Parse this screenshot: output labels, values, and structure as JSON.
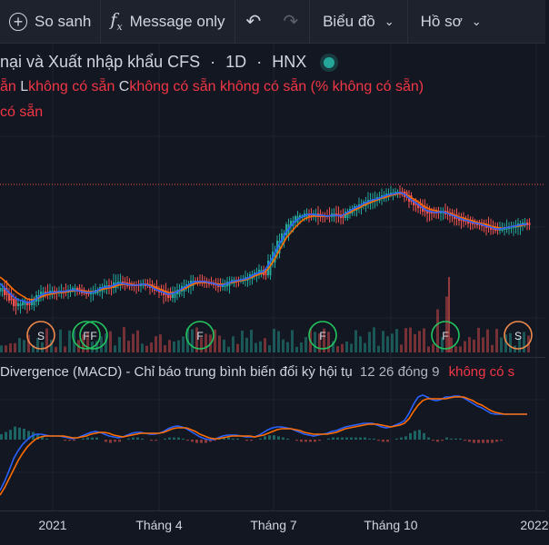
{
  "toolbar": {
    "compare_label": "So sanh",
    "indicator_label": "Message only",
    "chart_label": "Biểu đồ",
    "profile_label": "Hồ sơ"
  },
  "legend": {
    "title": "nại và Xuất nhập khẩu CFS",
    "interval": "1D",
    "exchange": "HNX",
    "row2_open_value": "ẵn",
    "row2_low_label": "L",
    "row2_low_value": "không có sẵn",
    "row2_close_label": "C",
    "row2_close_value": "không có sẵn",
    "row2_change": "không có sẵn (% không có sẵn)",
    "row3": "có sẵn"
  },
  "macd": {
    "title": "Divergence (MACD) - Chỉ báo trung bình biến đổi kỳ hội tụ",
    "params": "12 26 đóng 9",
    "value": "không có s"
  },
  "colors": {
    "background": "#131722",
    "up": "#26a69a",
    "down": "#ef5350",
    "macd_line": "#2962ff",
    "signal_line": "#ff6d00"
  },
  "chart_data": {
    "type": "line",
    "x_ticks": [
      "2021",
      "Tháng 4",
      "Tháng 7",
      "Tháng 10",
      "2022"
    ],
    "price": {
      "x": [
        0,
        5,
        10,
        15,
        20,
        25,
        30,
        35,
        40,
        45,
        50,
        55,
        60,
        65,
        70,
        75,
        80,
        85,
        90,
        95,
        100,
        105,
        110,
        115,
        120,
        125,
        130,
        135,
        140,
        145,
        150,
        155,
        160,
        165,
        170,
        175,
        180,
        185,
        190,
        195,
        200,
        205,
        210,
        215,
        220,
        225,
        230,
        235,
        240,
        245,
        250,
        255,
        260,
        265,
        270,
        275,
        280,
        285,
        290,
        295,
        300,
        305,
        310,
        315,
        320,
        325,
        330,
        335,
        340,
        345,
        350,
        355,
        360,
        365,
        370,
        375,
        380,
        385,
        390,
        395,
        400,
        405,
        410,
        415,
        420,
        425,
        430,
        435,
        440,
        445,
        450,
        455,
        460,
        465,
        470,
        475,
        480,
        485,
        490,
        495,
        500,
        505,
        510,
        515,
        520,
        525,
        530,
        535,
        540,
        545,
        550,
        555,
        560,
        565,
        570,
        575,
        580
      ],
      "close": [
        318,
        324,
        330,
        336,
        335,
        333,
        335,
        331,
        326,
        322,
        322,
        321,
        322,
        321,
        321,
        320,
        318,
        320,
        322,
        323,
        322,
        320,
        317,
        315,
        316,
        312,
        311,
        312,
        314,
        314,
        314,
        313,
        314,
        316,
        319,
        321,
        324,
        327,
        323,
        320,
        316,
        314,
        310,
        310,
        310,
        311,
        312,
        313,
        315,
        314,
        311,
        309,
        309,
        308,
        306,
        303,
        301,
        298,
        302,
        288,
        278,
        266,
        258,
        248,
        244,
        239,
        238,
        236,
        237,
        236,
        238,
        238,
        238,
        236,
        237,
        239,
        234,
        231,
        228,
        226,
        223,
        221,
        220,
        218,
        216,
        214,
        213,
        212,
        212,
        216,
        221,
        225,
        228,
        232,
        234,
        234,
        234,
        233,
        235,
        237,
        240,
        242,
        243,
        245,
        246,
        247,
        248,
        250,
        252,
        253,
        252,
        251,
        250,
        249,
        247,
        246,
        247
      ],
      "ma_fast": [
        312,
        317,
        322,
        327,
        330,
        331,
        333,
        332,
        329,
        325,
        323,
        322,
        322,
        321,
        321,
        320,
        319,
        320,
        321,
        322,
        322,
        321,
        318,
        316,
        316,
        314,
        312,
        312,
        313,
        314,
        314,
        313,
        313,
        315,
        318,
        320,
        322,
        324,
        323,
        321,
        318,
        315,
        312,
        310,
        310,
        310,
        311,
        312,
        314,
        314,
        312,
        310,
        309,
        308,
        307,
        305,
        302,
        300,
        299,
        292,
        283,
        273,
        264,
        255,
        249,
        243,
        240,
        237,
        236,
        236,
        237,
        237,
        238,
        237,
        237,
        238,
        235,
        232,
        229,
        227,
        224,
        222,
        220,
        219,
        217,
        215,
        214,
        213,
        212,
        214,
        218,
        222,
        225,
        229,
        232,
        233,
        234,
        233,
        234,
        236,
        238,
        240,
        242,
        243,
        245,
        246,
        247,
        249,
        250,
        252,
        252,
        251,
        250,
        249,
        248,
        247,
        247
      ],
      "ma_slow": [
        305,
        309,
        314,
        319,
        323,
        326,
        329,
        330,
        329,
        327,
        325,
        324,
        323,
        322,
        322,
        321,
        320,
        320,
        320,
        321,
        321,
        321,
        319,
        318,
        317,
        316,
        314,
        313,
        313,
        313,
        314,
        313,
        313,
        314,
        316,
        318,
        320,
        322,
        322,
        321,
        319,
        317,
        314,
        312,
        311,
        311,
        311,
        312,
        313,
        313,
        312,
        311,
        310,
        309,
        308,
        306,
        304,
        302,
        300,
        296,
        289,
        280,
        271,
        262,
        256,
        250,
        245,
        241,
        239,
        238,
        238,
        238,
        238,
        237,
        237,
        238,
        236,
        234,
        231,
        229,
        226,
        224,
        222,
        220,
        218,
        217,
        215,
        214,
        213,
        214,
        216,
        219,
        222,
        226,
        229,
        231,
        232,
        233,
        234,
        235,
        237,
        239,
        240,
        242,
        243,
        245,
        246,
        247,
        249,
        250,
        251,
        251,
        250,
        249,
        249,
        248,
        247
      ],
      "markers": [
        {
          "x": 45,
          "label": "S",
          "color": "#ef8a4b"
        },
        {
          "x": 95,
          "label": "F",
          "color": "#22c55e"
        },
        {
          "x": 103,
          "label": "F",
          "color": "#22c55e"
        },
        {
          "x": 220,
          "label": "F",
          "color": "#22c55e"
        },
        {
          "x": 355,
          "label": "F",
          "color": "#22c55e"
        },
        {
          "x": 490,
          "label": "F",
          "color": "#22c55e"
        },
        {
          "x": 570,
          "label": "S",
          "color": "#ef8a4b"
        }
      ]
    },
    "macd_series": {
      "macd": [
        540,
        530,
        518,
        505,
        496,
        489,
        484,
        480,
        478,
        478,
        479,
        480,
        480,
        480,
        481,
        482,
        483,
        482,
        480,
        478,
        476,
        475,
        476,
        478,
        480,
        481,
        482,
        481,
        479,
        477,
        476,
        476,
        477,
        478,
        478,
        477,
        475,
        472,
        470,
        469,
        470,
        472,
        475,
        478,
        481,
        483,
        484,
        484,
        482,
        480,
        479,
        479,
        479,
        480,
        481,
        481,
        481,
        479,
        476,
        473,
        471,
        470,
        470,
        471,
        472,
        474,
        476,
        478,
        479,
        480,
        479,
        478,
        477,
        475,
        474,
        472,
        470,
        469,
        468,
        467,
        466,
        466,
        466,
        468,
        470,
        471,
        470,
        468,
        466,
        463,
        455,
        445,
        437,
        435,
        437,
        440,
        441,
        440,
        437,
        437,
        436,
        436,
        438,
        441,
        444,
        447,
        449,
        452,
        455,
        456,
        456,
        456,
        456,
        456,
        456,
        456,
        456
      ],
      "signal": [
        545,
        537,
        527,
        517,
        507,
        499,
        492,
        487,
        483,
        481,
        480,
        480,
        480,
        480,
        480,
        481,
        482,
        482,
        481,
        480,
        478,
        477,
        476,
        476,
        477,
        479,
        480,
        481,
        480,
        479,
        478,
        477,
        477,
        477,
        477,
        477,
        476,
        474,
        472,
        471,
        471,
        471,
        473,
        475,
        478,
        480,
        482,
        483,
        483,
        482,
        481,
        480,
        480,
        480,
        480,
        480,
        481,
        480,
        479,
        477,
        475,
        473,
        472,
        472,
        472,
        473,
        474,
        476,
        477,
        478,
        478,
        478,
        478,
        477,
        476,
        474,
        472,
        471,
        470,
        469,
        468,
        467,
        467,
        467,
        468,
        469,
        470,
        469,
        468,
        466,
        461,
        453,
        446,
        441,
        439,
        439,
        439,
        439,
        439,
        438,
        437,
        437,
        437,
        439,
        441,
        444,
        446,
        449,
        452,
        454,
        455,
        456,
        456,
        456,
        456,
        456,
        456
      ]
    }
  }
}
